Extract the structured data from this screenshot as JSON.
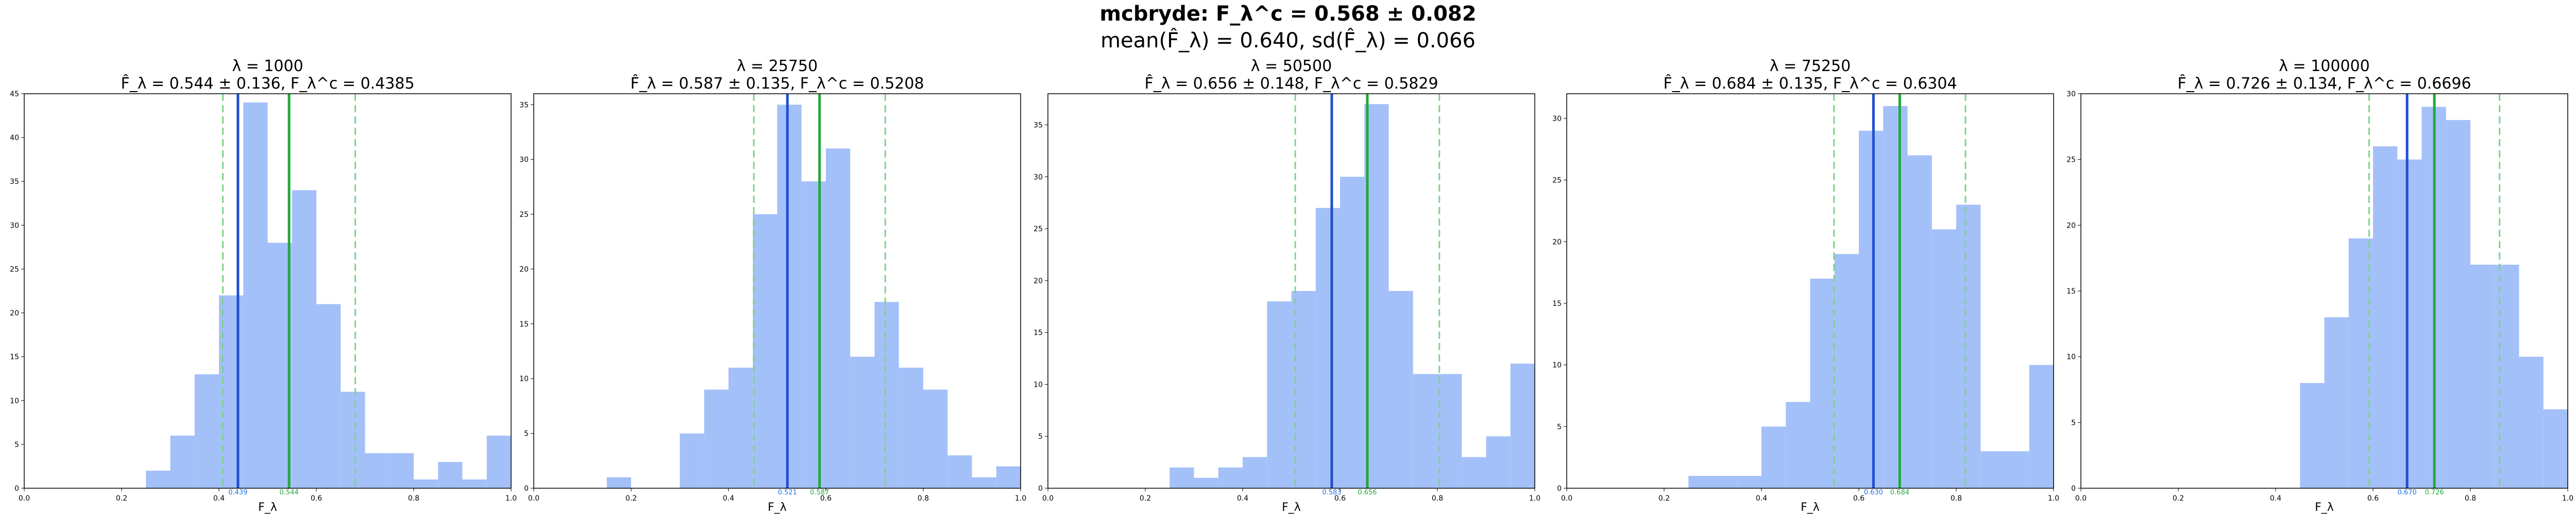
{
  "figure": {
    "suptitle_line1": "mcbryde: F_λ^c = 0.568 ± 0.082",
    "suptitle_line2": "mean(F̂_λ) = 0.640, sd(F̂_λ) = 0.066"
  },
  "colors": {
    "bar": "#a4c0f8",
    "mean_line": "#1f4fd0",
    "fc_line": "#22a83a",
    "ci_line": "#7fd38a",
    "mean_text": "#1f6fe0",
    "fc_text": "#22a83a"
  },
  "chart_data": [
    {
      "type": "bar",
      "title": "λ = 1000",
      "subtitle": "F̂_λ = 0.544 ± 0.136, F_λ^c = 0.4385",
      "xlabel": "F_λ",
      "xlim": [
        0,
        1
      ],
      "ylim": [
        0,
        45
      ],
      "xticks": [
        0.0,
        0.2,
        0.4,
        0.6,
        0.8,
        1.0
      ],
      "xtick_labels": [
        "0.0",
        "0.2",
        "0.4",
        "0.6",
        "0.8",
        "1.0"
      ],
      "yticks": [
        0,
        5,
        10,
        15,
        20,
        25,
        30,
        35,
        40,
        45
      ],
      "bin_edges": [
        0.25,
        0.3,
        0.35,
        0.4,
        0.45,
        0.5,
        0.55,
        0.6,
        0.65,
        0.7,
        0.75,
        0.8,
        0.85,
        0.9,
        0.95,
        1.0
      ],
      "counts": [
        2,
        6,
        13,
        22,
        44,
        28,
        34,
        21,
        11,
        4,
        4,
        1,
        3,
        1,
        6
      ],
      "mean_line": 0.439,
      "fc_line": 0.544,
      "ci_lines": [
        0.408,
        0.68
      ],
      "mean_label": "0.439",
      "fc_label": "0.544"
    },
    {
      "type": "bar",
      "title": "λ = 25750",
      "subtitle": "F̂_λ = 0.587 ± 0.135, F_λ^c = 0.5208",
      "xlabel": "F_λ",
      "xlim": [
        0,
        1
      ],
      "ylim": [
        0,
        36
      ],
      "xticks": [
        0.0,
        0.2,
        0.4,
        0.6,
        0.8,
        1.0
      ],
      "xtick_labels": [
        "0.0",
        "0.2",
        "0.4",
        "0.6",
        "0.8",
        "1.0"
      ],
      "yticks": [
        0,
        5,
        10,
        15,
        20,
        25,
        30,
        35
      ],
      "bin_edges": [
        0.15,
        0.2,
        0.25,
        0.3,
        0.35,
        0.4,
        0.45,
        0.5,
        0.55,
        0.6,
        0.65,
        0.7,
        0.75,
        0.8,
        0.85,
        0.9,
        0.95,
        1.0
      ],
      "counts": [
        1,
        0,
        0,
        5,
        9,
        11,
        25,
        35,
        28,
        31,
        12,
        17,
        11,
        9,
        3,
        1,
        2
      ],
      "mean_line": 0.521,
      "fc_line": 0.587,
      "ci_lines": [
        0.452,
        0.722
      ],
      "mean_label": "0.521",
      "fc_label": "0.587"
    },
    {
      "type": "bar",
      "title": "λ = 50500",
      "subtitle": "F̂_λ = 0.656 ± 0.148, F_λ^c = 0.5829",
      "xlabel": "F_λ",
      "xlim": [
        0,
        1
      ],
      "ylim": [
        0,
        38
      ],
      "xticks": [
        0.0,
        0.2,
        0.4,
        0.6,
        0.8,
        1.0
      ],
      "xtick_labels": [
        "0.0",
        "0.2",
        "0.4",
        "0.6",
        "0.8",
        "1.0"
      ],
      "yticks": [
        0,
        5,
        10,
        15,
        20,
        25,
        30,
        35
      ],
      "bin_edges": [
        0.25,
        0.3,
        0.35,
        0.4,
        0.45,
        0.5,
        0.55,
        0.6,
        0.65,
        0.7,
        0.75,
        0.8,
        0.85,
        0.9,
        0.95,
        1.0
      ],
      "counts": [
        2,
        1,
        2,
        3,
        18,
        19,
        27,
        30,
        37,
        19,
        11,
        11,
        3,
        5,
        12
      ],
      "mean_line": 0.583,
      "fc_line": 0.656,
      "ci_lines": [
        0.508,
        0.804
      ],
      "mean_label": "0.583",
      "fc_label": "0.656"
    },
    {
      "type": "bar",
      "title": "λ = 75250",
      "subtitle": "F̂_λ = 0.684 ± 0.135, F_λ^c = 0.6304",
      "xlabel": "F_λ",
      "xlim": [
        0,
        1
      ],
      "ylim": [
        0,
        32
      ],
      "xticks": [
        0.0,
        0.2,
        0.4,
        0.6,
        0.8,
        1.0
      ],
      "xtick_labels": [
        "0.0",
        "0.2",
        "0.4",
        "0.6",
        "0.8",
        "1.0"
      ],
      "yticks": [
        0,
        5,
        10,
        15,
        20,
        25,
        30
      ],
      "bin_edges": [
        0.25,
        0.3,
        0.35,
        0.4,
        0.45,
        0.5,
        0.55,
        0.6,
        0.65,
        0.7,
        0.75,
        0.8,
        0.85,
        0.9,
        0.95,
        1.0
      ],
      "counts": [
        1,
        1,
        1,
        5,
        7,
        17,
        19,
        29,
        31,
        27,
        21,
        23,
        3,
        3,
        10
      ],
      "mean_line": 0.63,
      "fc_line": 0.684,
      "ci_lines": [
        0.549,
        0.819
      ],
      "mean_label": "0.630",
      "fc_label": "0.684"
    },
    {
      "type": "bar",
      "title": "λ = 100000",
      "subtitle": "F̂_λ = 0.726 ± 0.134, F_λ^c = 0.6696",
      "xlabel": "F_λ",
      "xlim": [
        0,
        1
      ],
      "ylim": [
        0,
        30
      ],
      "xticks": [
        0.0,
        0.2,
        0.4,
        0.6,
        0.8,
        1.0
      ],
      "xtick_labels": [
        "0.0",
        "0.2",
        "0.4",
        "0.6",
        "0.8",
        "1.0"
      ],
      "yticks": [
        0,
        5,
        10,
        15,
        20,
        25,
        30
      ],
      "bin_edges": [
        0.45,
        0.5,
        0.55,
        0.6,
        0.65,
        0.7,
        0.75,
        0.8,
        0.85,
        0.9,
        0.95,
        1.0
      ],
      "counts": [
        8,
        13,
        19,
        26,
        25,
        29,
        28,
        17,
        17,
        10,
        6
      ],
      "mean_line": 0.67,
      "fc_line": 0.726,
      "ci_lines": [
        0.592,
        0.86
      ],
      "mean_label": "0.670",
      "fc_label": "0.726"
    }
  ]
}
